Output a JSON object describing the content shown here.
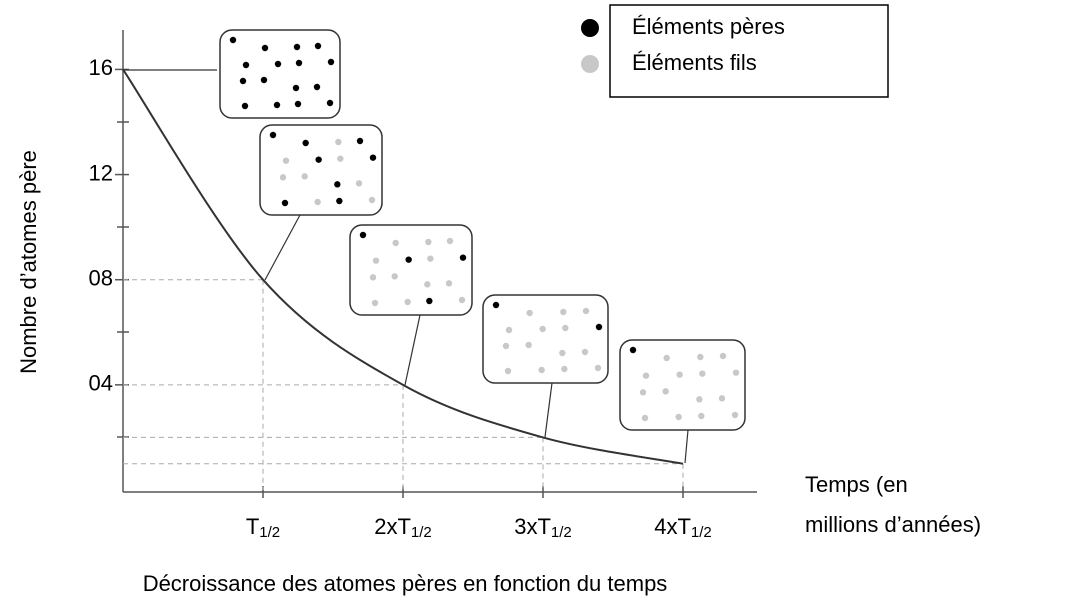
{
  "chart_data": {
    "type": "line",
    "title": "Décroissance des atomes pères en fonction du temps",
    "y_label": "Nombre d’atomes père",
    "x_label": [
      "Temps (en",
      "millions d’années)"
    ],
    "x": [
      0,
      1,
      2,
      3,
      4
    ],
    "values": [
      16,
      8,
      4,
      2,
      1
    ],
    "color": "#333333",
    "xlim": [
      0,
      4.6
    ],
    "ylim": [
      0,
      17.5
    ],
    "xticks": [
      {
        "value": 1,
        "label": "T1/2"
      },
      {
        "value": 2,
        "label": "2xT1/2"
      },
      {
        "value": 3,
        "label": "3xT1/2"
      },
      {
        "value": 4,
        "label": "4xT1/2"
      }
    ],
    "yticks": [
      {
        "value": 4,
        "label": "04"
      },
      {
        "value": 8,
        "label": "08"
      },
      12,
      16
    ],
    "legend": [
      {
        "label": "Éléments pères",
        "color": "#000000"
      },
      {
        "label": "Éléments fils",
        "color": "#c8c8c8"
      }
    ]
  }
}
